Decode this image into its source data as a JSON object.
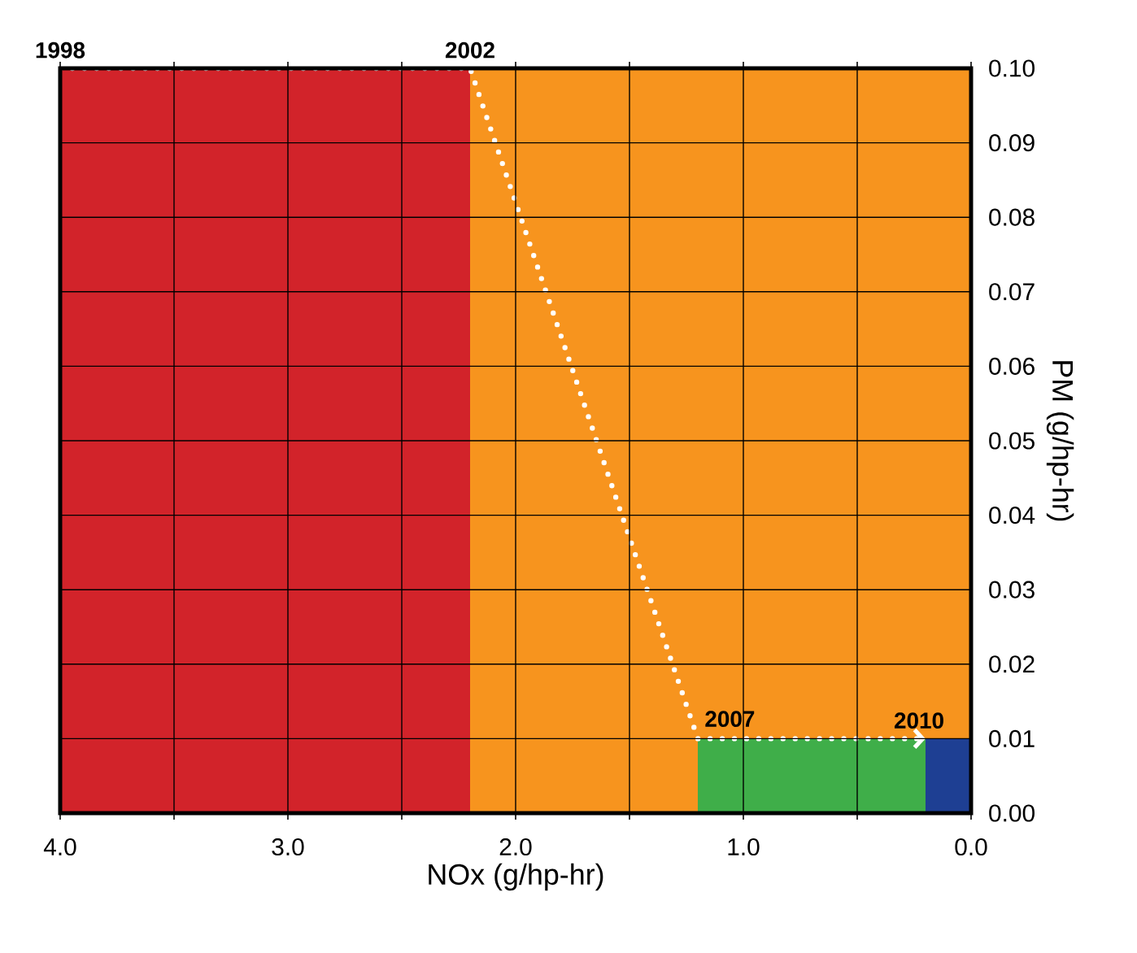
{
  "chart_data": {
    "type": "area",
    "xlabel": "NOx (g/hp-hr)",
    "ylabel": "PM (g/hp-hr)",
    "xlim": [
      4.0,
      0.0
    ],
    "ylim": [
      0,
      0.1
    ],
    "xticks": [
      {
        "value": 4,
        "label": "4.0"
      },
      {
        "value": 3.5,
        "label": null
      },
      {
        "value": 3,
        "label": "3.0"
      },
      {
        "value": 2.5,
        "label": null
      },
      {
        "value": 2,
        "label": "2.0"
      },
      {
        "value": 1.5,
        "label": null
      },
      {
        "value": 1,
        "label": "1.0"
      },
      {
        "value": 0.5,
        "label": null
      },
      {
        "value": 0,
        "label": "0.0"
      }
    ],
    "yticks": [
      {
        "value": 0,
        "label": "0.00"
      },
      {
        "value": 0.01,
        "label": "0.01"
      },
      {
        "value": 0.02,
        "label": "0.02"
      },
      {
        "value": 0.03,
        "label": "0.03"
      },
      {
        "value": 0.04,
        "label": "0.04"
      },
      {
        "value": 0.05,
        "label": "0.05"
      },
      {
        "value": 0.06,
        "label": "0.06"
      },
      {
        "value": 0.07,
        "label": "0.07"
      },
      {
        "value": 0.08,
        "label": "0.08"
      },
      {
        "value": 0.09,
        "label": "0.09"
      },
      {
        "value": 0.1,
        "label": "0.10"
      }
    ],
    "grid": true,
    "series": [
      {
        "color": "#d2232a",
        "x": [
          0,
          4.0
        ],
        "values": [
          0.1,
          0.1
        ]
      },
      {
        "color": "#f7941e",
        "x": [
          0,
          2.2
        ],
        "values": [
          0.1,
          0.1
        ]
      },
      {
        "color": "#3fae49",
        "x": [
          0,
          1.2
        ],
        "values": [
          0.01,
          0.01
        ]
      },
      {
        "color": "#1e3f93",
        "x": [
          0,
          0.2
        ],
        "values": [
          0.01,
          0.01
        ]
      }
    ],
    "annotations": [
      {
        "text": "1998",
        "x": 4.0,
        "y": 0.1
      },
      {
        "text": "2002",
        "x": 2.2,
        "y": 0.1
      },
      {
        "text": "2007",
        "x": 1.2,
        "y": 0.01
      },
      {
        "text": "2010",
        "x": 0.2,
        "y": 0.01
      }
    ]
  }
}
